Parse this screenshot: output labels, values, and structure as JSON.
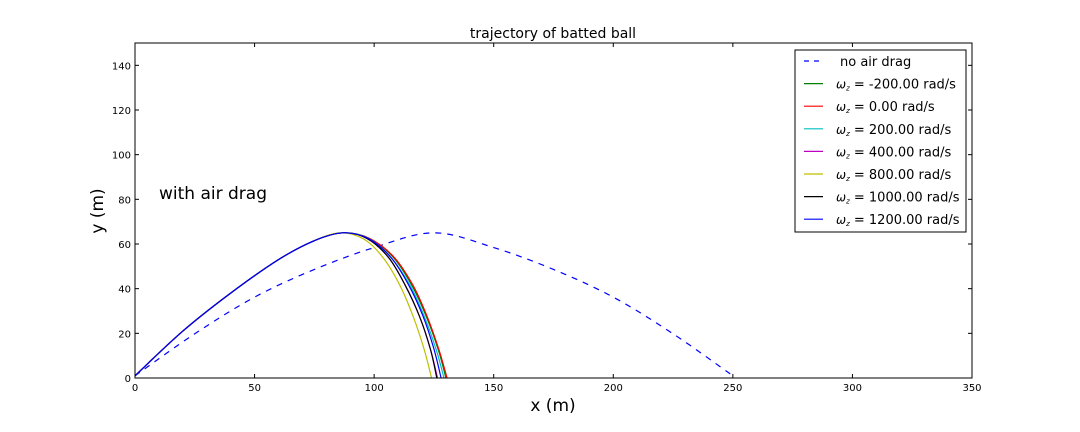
{
  "chart_data": {
    "type": "line",
    "title": "trajectory of batted ball",
    "xlabel": "x (m)",
    "ylabel": "y (m)",
    "xlim": [
      0,
      350
    ],
    "ylim": [
      0,
      150
    ],
    "xticks": [
      0,
      50,
      100,
      150,
      200,
      250,
      300,
      350
    ],
    "yticks": [
      0,
      20,
      40,
      60,
      80,
      100,
      120,
      140
    ],
    "grid": false,
    "legend_position": "upper right",
    "annotations": [
      {
        "text": "with air drag",
        "x": 10,
        "y": 80
      }
    ],
    "series": [
      {
        "name": "no air drag",
        "color": "#0000ff",
        "style": "dashed",
        "x": [
          0,
          25,
          50,
          75,
          100,
          125,
          150,
          175,
          200,
          225,
          250
        ],
        "y": [
          1,
          19.8,
          36.2,
          48.6,
          58.4,
          65.0,
          58.4,
          48.6,
          36.2,
          19.8,
          1
        ]
      },
      {
        "name": "ωz = -200.00 rad/s",
        "color": "#008000",
        "style": "solid",
        "x": [
          0,
          20,
          40,
          60,
          75,
          87,
          98,
          108,
          116,
          122,
          127,
          130
        ],
        "y": [
          1,
          21,
          38,
          53,
          61.5,
          65,
          62.5,
          54,
          41,
          27,
          12,
          0
        ]
      },
      {
        "name": "ωz = 0.00 rad/s",
        "color": "#ff0000",
        "style": "solid",
        "x": [
          0,
          20,
          40,
          60,
          75,
          87,
          98,
          108,
          116,
          122,
          127,
          130.5
        ],
        "y": [
          1,
          21,
          38,
          53,
          61.5,
          65,
          62.5,
          54.5,
          42,
          28,
          13,
          0
        ]
      },
      {
        "name": "ωz = 200.00 rad/s",
        "color": "#00bfbf",
        "style": "solid",
        "x": [
          0,
          20,
          40,
          60,
          75,
          87,
          98,
          107,
          115,
          121,
          126,
          129.2
        ],
        "y": [
          1,
          21,
          38,
          53,
          61.5,
          65,
          62.2,
          54,
          41.5,
          27.5,
          12.5,
          0
        ]
      },
      {
        "name": "ωz = 400.00 rad/s",
        "color": "#bf00bf",
        "style": "solid",
        "x": [
          0,
          20,
          40,
          60,
          75,
          87,
          97,
          106,
          113,
          119,
          123.5,
          126.5
        ],
        "y": [
          1,
          21,
          38,
          53,
          61.5,
          65,
          62.5,
          54,
          41.5,
          27.5,
          13,
          0
        ]
      },
      {
        "name": "ωz = 800.00 rad/s",
        "color": "#bfbf00",
        "style": "solid",
        "x": [
          0,
          20,
          40,
          60,
          75,
          86,
          96,
          104,
          111,
          116.5,
          121,
          124
        ],
        "y": [
          1,
          21,
          38,
          53,
          61.5,
          65,
          62,
          53.5,
          41,
          27,
          12.5,
          0
        ]
      },
      {
        "name": "ωz = 1000.00 rad/s",
        "color": "#000000",
        "style": "solid",
        "x": [
          0,
          20,
          40,
          60,
          75,
          87,
          97,
          106,
          113,
          119,
          123.5,
          126.2
        ],
        "y": [
          1,
          21,
          38,
          53,
          61.5,
          65,
          62.5,
          54,
          41.5,
          27.5,
          13,
          0
        ]
      },
      {
        "name": "ωz = 1200.00 rad/s",
        "color": "#0000ff",
        "style": "solid",
        "x": [
          0,
          20,
          40,
          60,
          75,
          87,
          97.5,
          107,
          114.5,
          120.5,
          125,
          128
        ],
        "y": [
          1,
          21,
          38,
          53,
          61.5,
          65,
          62.5,
          54,
          41.5,
          27.5,
          13,
          0
        ]
      }
    ]
  },
  "legend": {
    "items": [
      {
        "label": "no air drag",
        "prefix": "",
        "color": "#0000ff",
        "dashed": true
      },
      {
        "label": " = -200.00 rad/s",
        "prefix": "ωz",
        "color": "#008000",
        "dashed": false
      },
      {
        "label": " = 0.00 rad/s",
        "prefix": "ωz",
        "color": "#ff0000",
        "dashed": false
      },
      {
        "label": " = 200.00 rad/s",
        "prefix": "ωz",
        "color": "#00bfbf",
        "dashed": false
      },
      {
        "label": " = 400.00 rad/s",
        "prefix": "ωz",
        "color": "#bf00bf",
        "dashed": false
      },
      {
        "label": " = 800.00 rad/s",
        "prefix": "ωz",
        "color": "#bfbf00",
        "dashed": false
      },
      {
        "label": " = 1000.00 rad/s",
        "prefix": "ωz",
        "color": "#000000",
        "dashed": false
      },
      {
        "label": " = 1200.00 rad/s",
        "prefix": "ωz",
        "color": "#0000ff",
        "dashed": false
      }
    ]
  }
}
